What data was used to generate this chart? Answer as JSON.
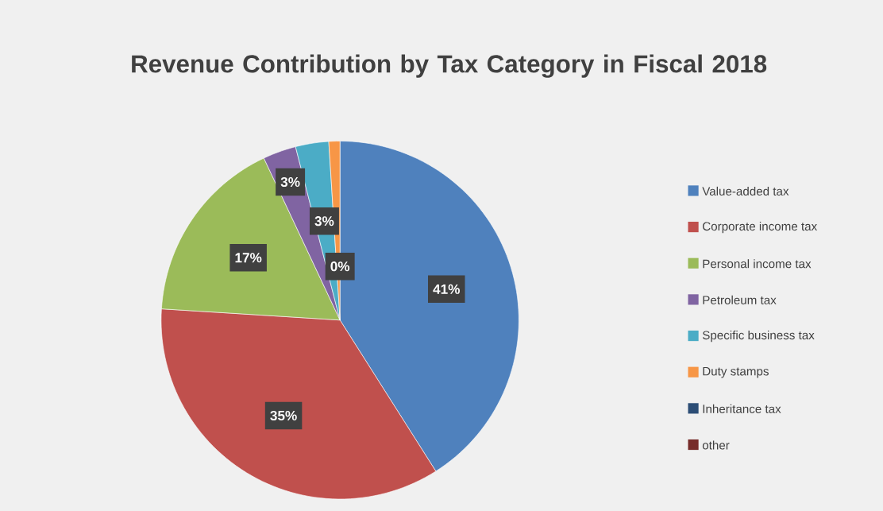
{
  "chart_data": {
    "type": "pie",
    "title": "Revenue Contribution by Tax Category in Fiscal 2018",
    "categories": [
      "Value-added tax",
      "Corporate income tax",
      "Personal income tax",
      "Petroleum tax",
      "Specific business tax",
      "Duty stamps",
      "Inheritance tax",
      "other"
    ],
    "values": [
      41,
      35,
      17,
      3,
      3,
      1,
      0,
      0
    ],
    "colors": [
      "#4f81bd",
      "#c0504d",
      "#9bbb59",
      "#8064a2",
      "#4bacc6",
      "#f79646",
      "#2c4d75",
      "#772c2a"
    ],
    "value_labels": [
      "41%",
      "35%",
      "17%",
      "3%",
      "3%",
      null,
      null,
      "0%"
    ],
    "legend": "right"
  }
}
